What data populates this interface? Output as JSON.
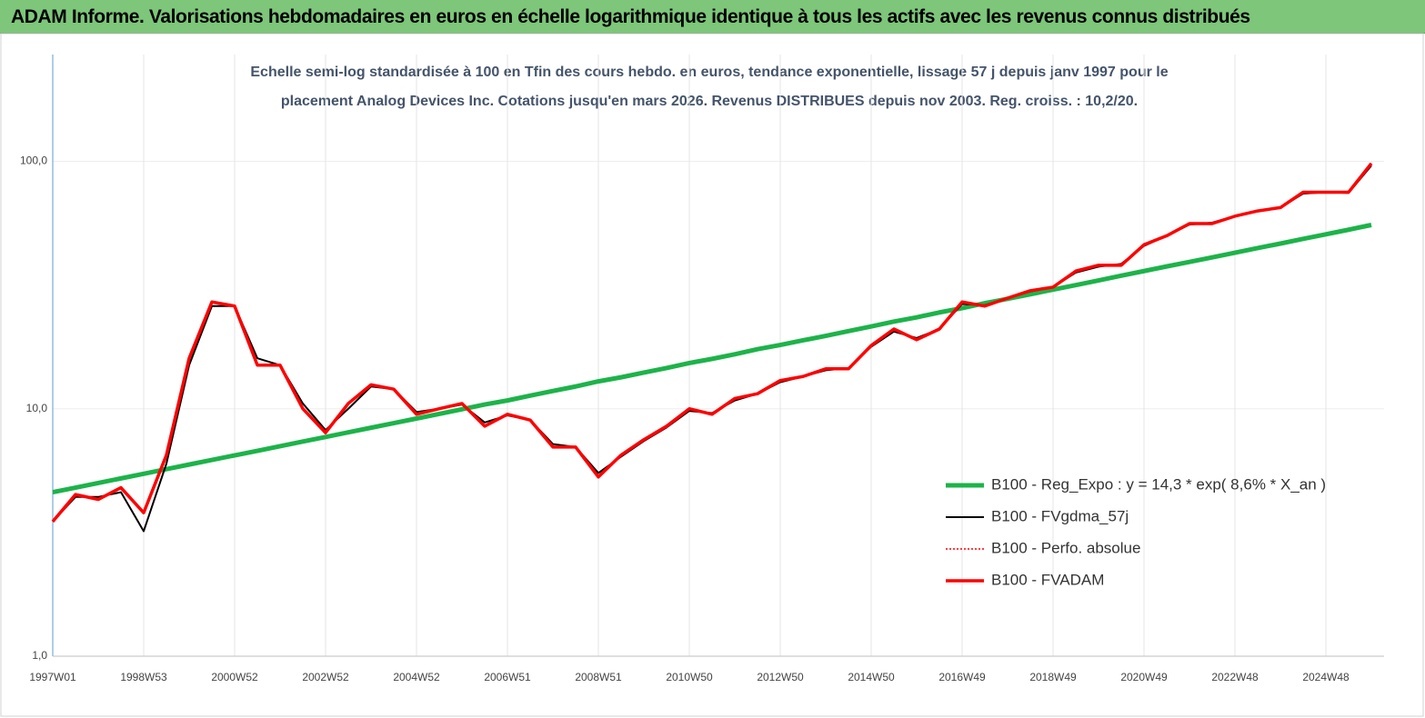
{
  "header": {
    "title": "ADAM Informe. Valorisations hebdomadaires en euros en échelle logarithmique identique à tous les actifs avec les revenus connus distribués"
  },
  "chart_data": {
    "type": "line",
    "subtitle": [
      "Echelle semi-log standardisée à 100 en Tfin des cours hebdo. en euros, tendance exponentielle, lissage 57 j depuis janv 1997 pour le",
      "placement Analog Devices Inc. Cotations jusqu'en mars 2026. Revenus DISTRIBUES depuis nov 2003. Reg. croiss. : 10,2/20."
    ],
    "log_y": true,
    "grid": true,
    "legend": "right",
    "categories": [
      "1997W01",
      null,
      null,
      null,
      "1998W53",
      null,
      null,
      null,
      "2000W52",
      null,
      null,
      null,
      "2002W52",
      null,
      null,
      null,
      "2004W52",
      null,
      null,
      null,
      "2006W51",
      null,
      null,
      null,
      "2008W51",
      null,
      null,
      null,
      "2010W50",
      null,
      null,
      null,
      "2012W50",
      null,
      null,
      null,
      "2014W50",
      null,
      null,
      null,
      "2016W49",
      null,
      null,
      null,
      "2018W49",
      null,
      null,
      null,
      "2020W49",
      null,
      null,
      null,
      "2022W48",
      null,
      null,
      null,
      "2024W48",
      null,
      null
    ],
    "ylim": [
      1,
      270
    ],
    "yticks": [
      {
        "value": 1,
        "label": "1,0"
      },
      {
        "value": 10,
        "label": "10,0"
      },
      {
        "value": 100,
        "label": "100,0"
      }
    ],
    "series": [
      {
        "name": "B100 - Reg_Expo : y = 14,3 * exp( 8,6% *  X_an )",
        "color": "#1db34a",
        "style": "solid",
        "width": 5,
        "values": [
          4.6,
          4.8,
          5.01,
          5.23,
          5.46,
          5.7,
          5.95,
          6.21,
          6.48,
          6.76,
          7.06,
          7.37,
          7.69,
          8.03,
          8.38,
          8.75,
          9.13,
          9.53,
          9.95,
          10.4,
          10.8,
          11.3,
          11.8,
          12.3,
          12.9,
          13.4,
          14.0,
          14.6,
          15.3,
          15.9,
          16.6,
          17.4,
          18.1,
          18.9,
          19.7,
          20.6,
          21.5,
          22.5,
          23.4,
          24.5,
          25.5,
          26.7,
          27.8,
          29.0,
          30.3,
          31.6,
          33.0,
          34.5,
          36.0,
          37.6,
          39.2,
          40.9,
          42.7,
          44.6,
          46.5,
          48.6,
          50.7,
          52.9,
          55.3
        ]
      },
      {
        "name": "B100 - FVgdma_57j",
        "color": "#000000",
        "style": "solid",
        "width": 2,
        "values": [
          3.5,
          4.4,
          4.4,
          4.6,
          3.2,
          6.0,
          15,
          26,
          26,
          16,
          15,
          10.5,
          8.2,
          10,
          12.3,
          12,
          9.7,
          10,
          10.4,
          8.8,
          9.4,
          9,
          7.2,
          7,
          5.5,
          6.4,
          7.4,
          8.4,
          9.8,
          9.6,
          10.8,
          11.5,
          12.8,
          13.5,
          14.3,
          14.6,
          17.8,
          20.5,
          19.3,
          21,
          26.5,
          26.2,
          28,
          29.8,
          31,
          35.5,
          37.5,
          38.5,
          45.5,
          50,
          55.5,
          56.5,
          60,
          63,
          65,
          74,
          75,
          74.5,
          96
        ]
      },
      {
        "name": "B100 - Perfo. absolue",
        "color": "#ff0000",
        "style": "dotted",
        "width": 1.5,
        "values": [
          3.5,
          4.5,
          4.3,
          4.8,
          3.8,
          6.5,
          16,
          27,
          26,
          15,
          15,
          10,
          8,
          10.5,
          12.5,
          12,
          9.5,
          10,
          10.5,
          8.5,
          9.5,
          9,
          7,
          7,
          5.3,
          6.5,
          7.5,
          8.5,
          10,
          9.5,
          11,
          11.5,
          13,
          13.5,
          14.5,
          14.5,
          18,
          21,
          19,
          21,
          27,
          26,
          28,
          30,
          31,
          36,
          38,
          38,
          46,
          50,
          56,
          56,
          60,
          63,
          65,
          75,
          75,
          75,
          98
        ]
      },
      {
        "name": "B100 - FVADAM",
        "color": "#ff0000",
        "style": "solid",
        "width": 3.5,
        "values": [
          3.5,
          4.5,
          4.3,
          4.8,
          3.8,
          6.5,
          16,
          27,
          26,
          15,
          15,
          10,
          8,
          10.5,
          12.5,
          12,
          9.5,
          10,
          10.5,
          8.5,
          9.5,
          9,
          7,
          7,
          5.3,
          6.5,
          7.5,
          8.5,
          10,
          9.5,
          11,
          11.5,
          13,
          13.5,
          14.5,
          14.5,
          18,
          21,
          19,
          21,
          27,
          26,
          28,
          30,
          31,
          36,
          38,
          38,
          46,
          50,
          56,
          56,
          60,
          63,
          65,
          75,
          75,
          75,
          98
        ]
      }
    ]
  }
}
